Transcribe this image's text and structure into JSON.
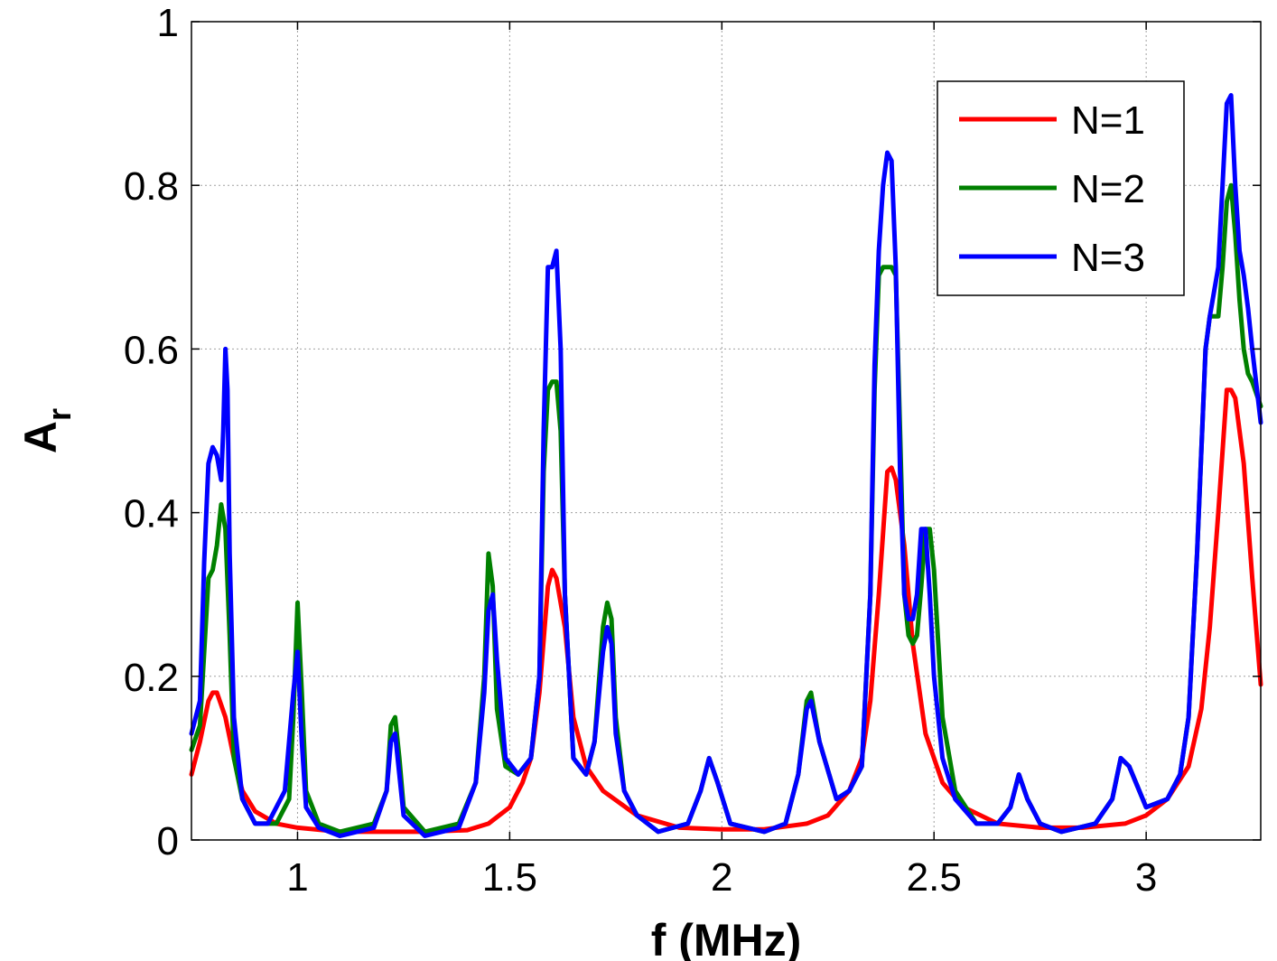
{
  "chart_data": {
    "type": "line",
    "xlabel": "f (MHz)",
    "ylabel": {
      "main": "A",
      "sub": "r"
    },
    "xlim": [
      0.75,
      3.27
    ],
    "ylim": [
      0,
      1
    ],
    "xticks": [
      {
        "value": 1,
        "label": "1"
      },
      {
        "value": 1.5,
        "label": "1.5"
      },
      {
        "value": 2,
        "label": "2"
      },
      {
        "value": 2.5,
        "label": "2.5"
      },
      {
        "value": 3,
        "label": "3"
      }
    ],
    "yticks": [
      {
        "value": 0,
        "label": "0"
      },
      {
        "value": 0.2,
        "label": "0.2"
      },
      {
        "value": 0.4,
        "label": "0.4"
      },
      {
        "value": 0.6,
        "label": "0.6"
      },
      {
        "value": 0.8,
        "label": "0.8"
      },
      {
        "value": 1,
        "label": "1"
      }
    ],
    "grid": true,
    "legend_position": "top-right",
    "series": [
      {
        "name": "N=1",
        "color": "#ff0000",
        "x": [
          0.75,
          0.77,
          0.79,
          0.8,
          0.81,
          0.83,
          0.85,
          0.87,
          0.9,
          0.95,
          1.0,
          1.1,
          1.2,
          1.3,
          1.4,
          1.45,
          1.5,
          1.53,
          1.55,
          1.57,
          1.59,
          1.6,
          1.61,
          1.63,
          1.65,
          1.68,
          1.72,
          1.8,
          1.9,
          2.0,
          2.1,
          2.2,
          2.25,
          2.3,
          2.33,
          2.35,
          2.37,
          2.39,
          2.4,
          2.41,
          2.43,
          2.45,
          2.48,
          2.52,
          2.57,
          2.65,
          2.75,
          2.85,
          2.95,
          3.0,
          3.05,
          3.1,
          3.13,
          3.15,
          3.17,
          3.19,
          3.2,
          3.21,
          3.23,
          3.25,
          3.27
        ],
        "y": [
          0.08,
          0.12,
          0.17,
          0.18,
          0.18,
          0.15,
          0.1,
          0.06,
          0.035,
          0.02,
          0.015,
          0.01,
          0.01,
          0.01,
          0.012,
          0.02,
          0.04,
          0.07,
          0.1,
          0.18,
          0.31,
          0.33,
          0.32,
          0.26,
          0.15,
          0.09,
          0.06,
          0.03,
          0.015,
          0.013,
          0.013,
          0.02,
          0.03,
          0.06,
          0.1,
          0.17,
          0.3,
          0.45,
          0.455,
          0.44,
          0.36,
          0.24,
          0.13,
          0.07,
          0.04,
          0.02,
          0.015,
          0.015,
          0.02,
          0.03,
          0.05,
          0.09,
          0.16,
          0.26,
          0.4,
          0.55,
          0.55,
          0.54,
          0.46,
          0.32,
          0.19
        ]
      },
      {
        "name": "N=2",
        "color": "#008000",
        "x": [
          0.75,
          0.77,
          0.79,
          0.8,
          0.81,
          0.82,
          0.83,
          0.84,
          0.85,
          0.87,
          0.9,
          0.95,
          0.98,
          0.99,
          1.0,
          1.01,
          1.02,
          1.05,
          1.1,
          1.18,
          1.21,
          1.22,
          1.23,
          1.24,
          1.25,
          1.3,
          1.38,
          1.42,
          1.44,
          1.45,
          1.46,
          1.47,
          1.49,
          1.52,
          1.55,
          1.57,
          1.58,
          1.59,
          1.6,
          1.61,
          1.62,
          1.63,
          1.65,
          1.68,
          1.7,
          1.72,
          1.73,
          1.74,
          1.75,
          1.77,
          1.8,
          1.85,
          1.92,
          1.95,
          1.97,
          1.99,
          2.02,
          2.1,
          2.15,
          2.18,
          2.2,
          2.21,
          2.23,
          2.27,
          2.3,
          2.33,
          2.35,
          2.36,
          2.37,
          2.38,
          2.4,
          2.41,
          2.42,
          2.43,
          2.44,
          2.45,
          2.46,
          2.47,
          2.48,
          2.49,
          2.5,
          2.52,
          2.55,
          2.6,
          2.65,
          2.68,
          2.7,
          2.72,
          2.75,
          2.8,
          2.88,
          2.92,
          2.94,
          2.96,
          3.0,
          3.05,
          3.08,
          3.1,
          3.12,
          3.14,
          3.15,
          3.17,
          3.18,
          3.19,
          3.2,
          3.21,
          3.22,
          3.23,
          3.24,
          3.25,
          3.27
        ],
        "y": [
          0.11,
          0.14,
          0.32,
          0.33,
          0.36,
          0.41,
          0.38,
          0.25,
          0.1,
          0.05,
          0.02,
          0.02,
          0.05,
          0.15,
          0.29,
          0.18,
          0.06,
          0.02,
          0.01,
          0.02,
          0.06,
          0.14,
          0.15,
          0.1,
          0.04,
          0.01,
          0.02,
          0.07,
          0.2,
          0.35,
          0.31,
          0.16,
          0.09,
          0.08,
          0.1,
          0.2,
          0.45,
          0.55,
          0.56,
          0.56,
          0.5,
          0.3,
          0.1,
          0.08,
          0.12,
          0.26,
          0.29,
          0.27,
          0.15,
          0.06,
          0.03,
          0.01,
          0.02,
          0.06,
          0.1,
          0.07,
          0.02,
          0.01,
          0.02,
          0.08,
          0.17,
          0.18,
          0.12,
          0.05,
          0.06,
          0.09,
          0.3,
          0.55,
          0.69,
          0.7,
          0.7,
          0.69,
          0.5,
          0.3,
          0.25,
          0.24,
          0.25,
          0.31,
          0.38,
          0.38,
          0.33,
          0.15,
          0.06,
          0.02,
          0.02,
          0.04,
          0.08,
          0.05,
          0.02,
          0.01,
          0.02,
          0.05,
          0.1,
          0.09,
          0.04,
          0.05,
          0.08,
          0.15,
          0.35,
          0.6,
          0.64,
          0.64,
          0.7,
          0.78,
          0.8,
          0.74,
          0.66,
          0.6,
          0.57,
          0.56,
          0.53
        ]
      },
      {
        "name": "N=3",
        "color": "#0000ff",
        "x": [
          0.75,
          0.77,
          0.78,
          0.79,
          0.8,
          0.81,
          0.82,
          0.825,
          0.83,
          0.835,
          0.84,
          0.85,
          0.87,
          0.9,
          0.93,
          0.97,
          0.99,
          1.0,
          1.01,
          1.02,
          1.05,
          1.1,
          1.18,
          1.21,
          1.22,
          1.23,
          1.24,
          1.25,
          1.3,
          1.38,
          1.42,
          1.44,
          1.45,
          1.46,
          1.47,
          1.49,
          1.52,
          1.55,
          1.57,
          1.58,
          1.59,
          1.6,
          1.61,
          1.62,
          1.63,
          1.65,
          1.68,
          1.7,
          1.72,
          1.73,
          1.74,
          1.75,
          1.77,
          1.8,
          1.85,
          1.92,
          1.95,
          1.97,
          1.99,
          2.02,
          2.1,
          2.15,
          2.18,
          2.2,
          2.21,
          2.23,
          2.27,
          2.3,
          2.33,
          2.35,
          2.36,
          2.37,
          2.38,
          2.39,
          2.4,
          2.41,
          2.42,
          2.43,
          2.44,
          2.45,
          2.46,
          2.47,
          2.48,
          2.49,
          2.5,
          2.52,
          2.55,
          2.6,
          2.65,
          2.68,
          2.7,
          2.72,
          2.75,
          2.8,
          2.88,
          2.92,
          2.94,
          2.96,
          3.0,
          3.05,
          3.08,
          3.1,
          3.12,
          3.14,
          3.15,
          3.17,
          3.18,
          3.19,
          3.2,
          3.21,
          3.22,
          3.23,
          3.24,
          3.25,
          3.27
        ],
        "y": [
          0.13,
          0.17,
          0.34,
          0.46,
          0.48,
          0.47,
          0.44,
          0.5,
          0.6,
          0.55,
          0.35,
          0.15,
          0.05,
          0.02,
          0.02,
          0.06,
          0.18,
          0.23,
          0.12,
          0.04,
          0.015,
          0.005,
          0.015,
          0.06,
          0.12,
          0.13,
          0.08,
          0.03,
          0.005,
          0.015,
          0.07,
          0.18,
          0.28,
          0.3,
          0.22,
          0.1,
          0.08,
          0.1,
          0.2,
          0.5,
          0.7,
          0.7,
          0.72,
          0.6,
          0.3,
          0.1,
          0.08,
          0.12,
          0.23,
          0.26,
          0.24,
          0.13,
          0.06,
          0.03,
          0.01,
          0.02,
          0.06,
          0.1,
          0.07,
          0.02,
          0.01,
          0.02,
          0.08,
          0.16,
          0.17,
          0.12,
          0.05,
          0.06,
          0.09,
          0.3,
          0.58,
          0.72,
          0.8,
          0.84,
          0.83,
          0.7,
          0.45,
          0.3,
          0.27,
          0.27,
          0.3,
          0.38,
          0.38,
          0.3,
          0.2,
          0.1,
          0.05,
          0.02,
          0.02,
          0.04,
          0.08,
          0.05,
          0.02,
          0.01,
          0.02,
          0.05,
          0.1,
          0.09,
          0.04,
          0.05,
          0.08,
          0.15,
          0.35,
          0.6,
          0.64,
          0.7,
          0.8,
          0.9,
          0.91,
          0.8,
          0.72,
          0.69,
          0.65,
          0.6,
          0.51
        ]
      }
    ]
  }
}
